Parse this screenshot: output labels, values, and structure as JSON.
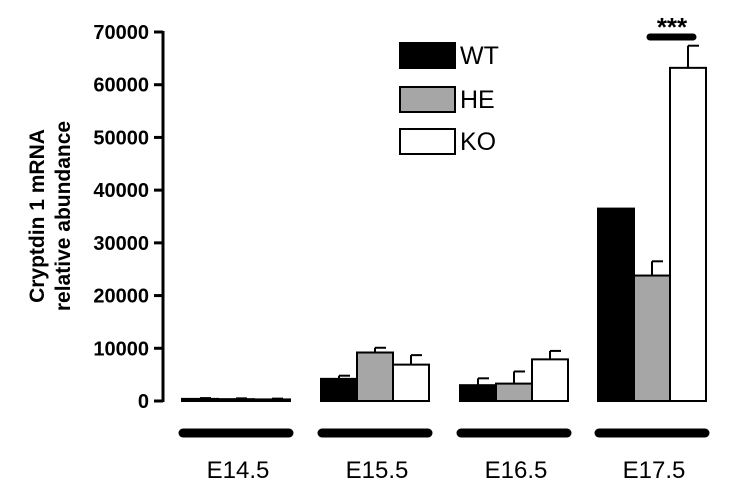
{
  "chart_data": {
    "type": "bar",
    "title": "",
    "xlabel": "",
    "ylabel": [
      "Cryptdin 1 mRNA",
      "relative abundance"
    ],
    "ylim": [
      0,
      70000
    ],
    "yticks": [
      "0",
      "10000",
      "20000",
      "30000",
      "40000",
      "50000",
      "60000",
      "70000"
    ],
    "categories": [
      "E14.5",
      "E15.5",
      "E16.5",
      "E17.5"
    ],
    "series": [
      {
        "name": "WT",
        "color": "#000000",
        "values": [
          400,
          4200,
          3000,
          36500
        ],
        "errors": [
          150,
          600,
          1300,
          0
        ]
      },
      {
        "name": "HE",
        "color": "#a6a6a6",
        "values": [
          350,
          9200,
          3300,
          23800
        ],
        "errors": [
          150,
          900,
          2300,
          2700
        ]
      },
      {
        "name": "KO",
        "color": "#ffffff",
        "values": [
          300,
          6900,
          7900,
          63200
        ],
        "errors": [
          150,
          1800,
          1600,
          4200
        ]
      }
    ],
    "legend": {
      "position": "top-center",
      "entries": [
        "WT",
        "HE",
        "KO"
      ]
    },
    "annotation": {
      "text": "***",
      "category": "E17.5",
      "between": [
        "HE",
        "KO"
      ]
    },
    "grid": false
  }
}
